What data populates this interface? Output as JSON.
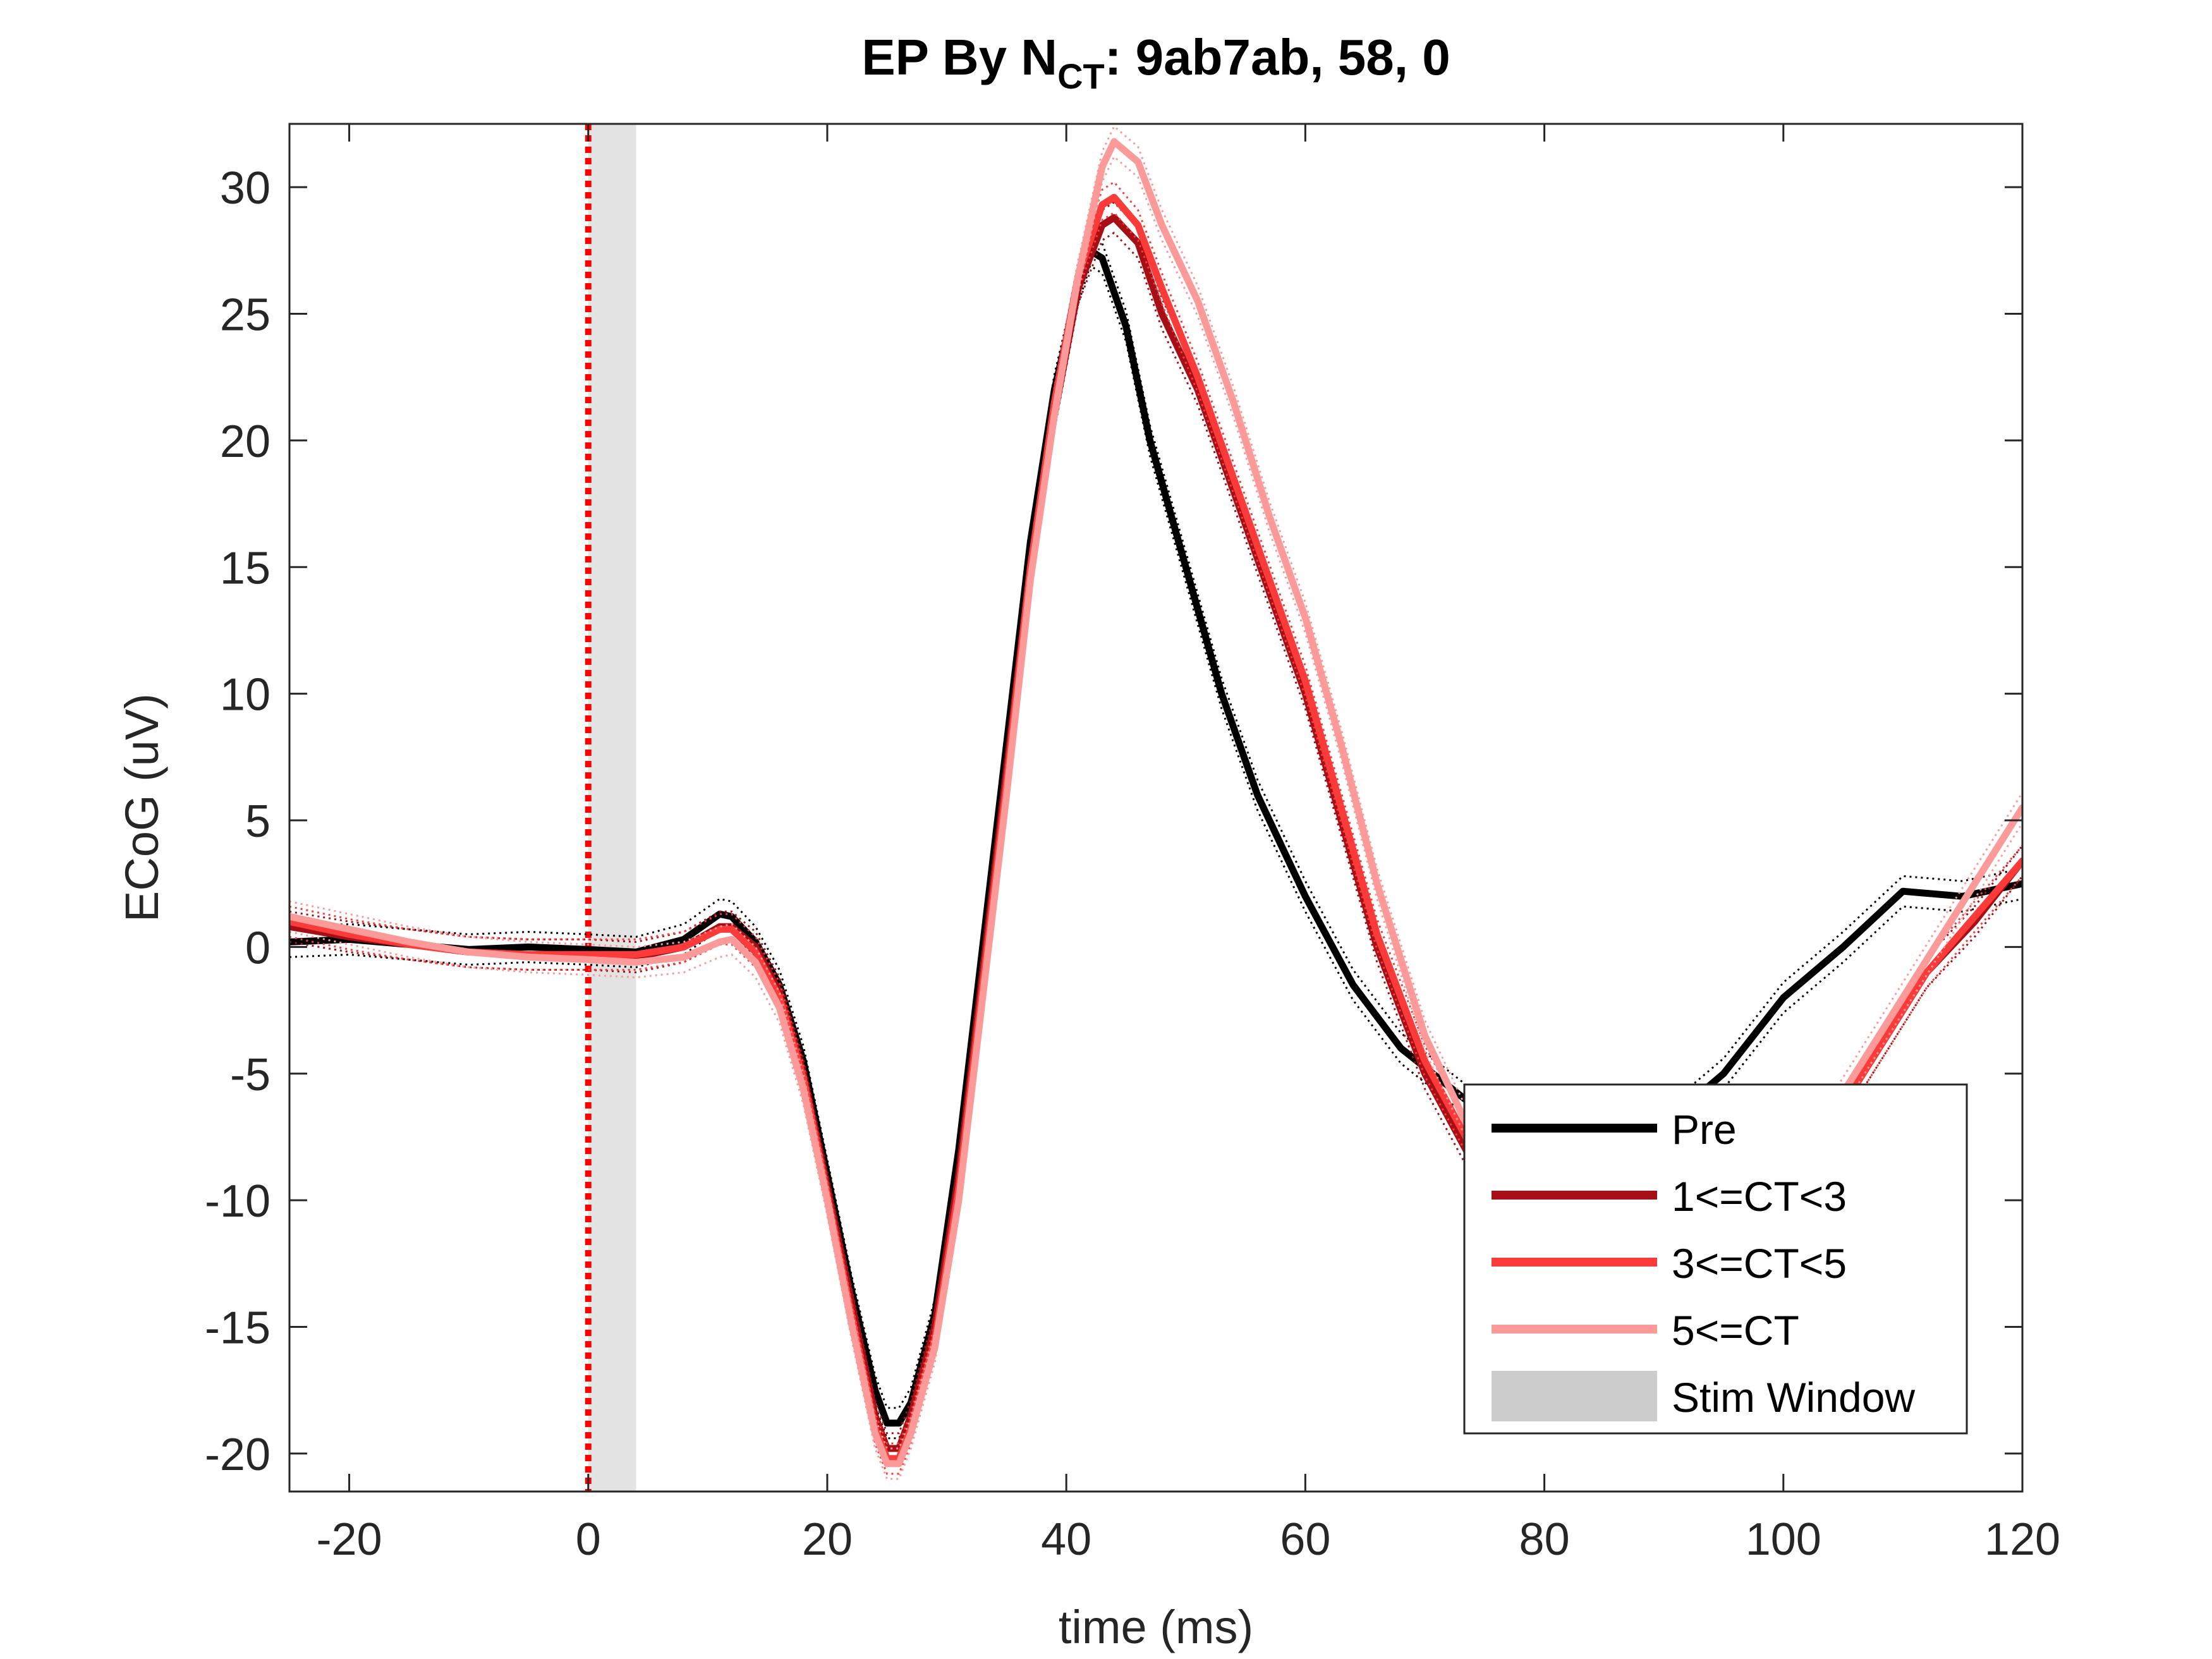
{
  "chart_data": {
    "type": "line",
    "title": {
      "prefix": "EP By N",
      "subscript": "CT",
      "suffix": ": 9ab7ab, 58, 0"
    },
    "xlabel": "time (ms)",
    "ylabel": "ECoG (uV)",
    "xlim": [
      -25,
      120
    ],
    "ylim": [
      -21.5,
      32.5
    ],
    "xticks": [
      -20,
      0,
      20,
      40,
      60,
      80,
      100,
      120
    ],
    "xtick_labels": [
      "-20",
      "0",
      "20",
      "40",
      "60",
      "80",
      "100",
      "120"
    ],
    "yticks": [
      -20,
      -15,
      -10,
      -5,
      0,
      5,
      10,
      15,
      20,
      25,
      30
    ],
    "ytick_labels": [
      "-20",
      "-15",
      "-10",
      "-5",
      "0",
      "5",
      "10",
      "15",
      "20",
      "25",
      "30"
    ],
    "grid": false,
    "legend_position": "bottom-right",
    "stim_window": {
      "label": "Stim Window",
      "x": [
        0,
        4
      ],
      "color": "#cccccc"
    },
    "stim_onset_line": {
      "x": 0,
      "color": "#ff0000",
      "style": "dotted"
    },
    "series": [
      {
        "name": "Pre",
        "color": "#000000",
        "points": [
          [
            -25,
            0.2
          ],
          [
            -20,
            0.3
          ],
          [
            -15,
            0.1
          ],
          [
            -10,
            -0.1
          ],
          [
            -5,
            0
          ],
          [
            0,
            -0.1
          ],
          [
            4,
            -0.2
          ],
          [
            8,
            0.3
          ],
          [
            11,
            1.3
          ],
          [
            12,
            1.2
          ],
          [
            14,
            0.2
          ],
          [
            16,
            -1.5
          ],
          [
            18,
            -4.5
          ],
          [
            20,
            -9.0
          ],
          [
            22,
            -13.5
          ],
          [
            24,
            -17.5
          ],
          [
            25,
            -18.8
          ],
          [
            26,
            -18.8
          ],
          [
            27,
            -18.0
          ],
          [
            29,
            -14.5
          ],
          [
            31,
            -8
          ],
          [
            33,
            0
          ],
          [
            35,
            8
          ],
          [
            37,
            16
          ],
          [
            39,
            22
          ],
          [
            41,
            26
          ],
          [
            42,
            27.5
          ],
          [
            43,
            27.2
          ],
          [
            45,
            24.5
          ],
          [
            47,
            20
          ],
          [
            50,
            15
          ],
          [
            53,
            10
          ],
          [
            56,
            6
          ],
          [
            60,
            2
          ],
          [
            64,
            -1.5
          ],
          [
            68,
            -4
          ],
          [
            72,
            -5.5
          ],
          [
            76,
            -7
          ],
          [
            80,
            -7.5
          ],
          [
            85,
            -8
          ],
          [
            90,
            -7
          ],
          [
            95,
            -5
          ],
          [
            100,
            -2
          ],
          [
            105,
            0
          ],
          [
            110,
            2.2
          ],
          [
            115,
            2
          ],
          [
            120,
            2.5
          ]
        ]
      },
      {
        "name": "1<=CT<3",
        "color": "#a50f15",
        "points": [
          [
            -25,
            0.8
          ],
          [
            -20,
            0.4
          ],
          [
            -15,
            0.1
          ],
          [
            -10,
            -0.2
          ],
          [
            -5,
            -0.3
          ],
          [
            0,
            -0.3
          ],
          [
            4,
            -0.4
          ],
          [
            8,
            0
          ],
          [
            11,
            0.8
          ],
          [
            12,
            0.8
          ],
          [
            14,
            0
          ],
          [
            16,
            -1.8
          ],
          [
            18,
            -5
          ],
          [
            20,
            -9.5
          ],
          [
            22,
            -14
          ],
          [
            24,
            -18.5
          ],
          [
            25,
            -19.8
          ],
          [
            26,
            -19.8
          ],
          [
            27,
            -18.5
          ],
          [
            29,
            -15
          ],
          [
            31,
            -9
          ],
          [
            33,
            -1
          ],
          [
            35,
            7
          ],
          [
            37,
            15
          ],
          [
            39,
            21
          ],
          [
            41,
            26
          ],
          [
            43,
            28.5
          ],
          [
            44,
            28.8
          ],
          [
            46,
            27.8
          ],
          [
            48,
            25
          ],
          [
            51,
            22
          ],
          [
            54,
            18
          ],
          [
            57,
            14
          ],
          [
            60,
            10
          ],
          [
            63,
            5
          ],
          [
            66,
            0
          ],
          [
            70,
            -5
          ],
          [
            74,
            -8.5
          ],
          [
            78,
            -10
          ],
          [
            82,
            -10.5
          ],
          [
            86,
            -10.5
          ],
          [
            90,
            -10
          ],
          [
            95,
            -9.5
          ],
          [
            100,
            -8.5
          ],
          [
            104,
            -7
          ],
          [
            108,
            -4
          ],
          [
            112,
            -1
          ],
          [
            116,
            1
          ],
          [
            120,
            3.4
          ]
        ]
      },
      {
        "name": "3<=CT<5",
        "color": "#fb3a3a",
        "points": [
          [
            -25,
            1.0
          ],
          [
            -20,
            0.5
          ],
          [
            -15,
            0.1
          ],
          [
            -10,
            -0.2
          ],
          [
            -5,
            -0.3
          ],
          [
            0,
            -0.3
          ],
          [
            4,
            -0.3
          ],
          [
            8,
            0
          ],
          [
            11,
            0.7
          ],
          [
            12,
            0.7
          ],
          [
            14,
            -0.2
          ],
          [
            16,
            -2
          ],
          [
            18,
            -5.2
          ],
          [
            20,
            -9.8
          ],
          [
            22,
            -14.5
          ],
          [
            24,
            -19
          ],
          [
            25,
            -20.2
          ],
          [
            26,
            -20.2
          ],
          [
            27,
            -19
          ],
          [
            29,
            -15.5
          ],
          [
            31,
            -9.5
          ],
          [
            33,
            -1.5
          ],
          [
            35,
            6.5
          ],
          [
            37,
            15
          ],
          [
            39,
            21.5
          ],
          [
            41,
            26.5
          ],
          [
            43,
            29.3
          ],
          [
            44,
            29.6
          ],
          [
            46,
            28.5
          ],
          [
            48,
            26
          ],
          [
            51,
            22.5
          ],
          [
            54,
            18.5
          ],
          [
            57,
            14.5
          ],
          [
            60,
            10.5
          ],
          [
            63,
            5.5
          ],
          [
            66,
            0.5
          ],
          [
            70,
            -4.5
          ],
          [
            74,
            -8
          ],
          [
            78,
            -9.8
          ],
          [
            82,
            -10.5
          ],
          [
            86,
            -10.5
          ],
          [
            90,
            -10
          ],
          [
            95,
            -9.5
          ],
          [
            100,
            -8.5
          ],
          [
            104,
            -7
          ],
          [
            108,
            -4
          ],
          [
            112,
            -1
          ],
          [
            116,
            1.2
          ],
          [
            120,
            3.4
          ]
        ]
      },
      {
        "name": "5<=CT",
        "color": "#fc9a9a",
        "points": [
          [
            -25,
            1.2
          ],
          [
            -20,
            0.7
          ],
          [
            -15,
            0.2
          ],
          [
            -10,
            -0.2
          ],
          [
            -5,
            -0.4
          ],
          [
            0,
            -0.5
          ],
          [
            4,
            -0.6
          ],
          [
            8,
            -0.4
          ],
          [
            11,
            0.2
          ],
          [
            12,
            0.3
          ],
          [
            14,
            -0.6
          ],
          [
            16,
            -2.4
          ],
          [
            18,
            -5.6
          ],
          [
            20,
            -10
          ],
          [
            22,
            -14.8
          ],
          [
            24,
            -19.2
          ],
          [
            25,
            -20.4
          ],
          [
            26,
            -20.4
          ],
          [
            27,
            -19.2
          ],
          [
            29,
            -15.8
          ],
          [
            31,
            -10
          ],
          [
            33,
            -2
          ],
          [
            35,
            6
          ],
          [
            37,
            14.5
          ],
          [
            39,
            21
          ],
          [
            41,
            26.5
          ],
          [
            43,
            30.8
          ],
          [
            44,
            31.8
          ],
          [
            46,
            31
          ],
          [
            48,
            28.5
          ],
          [
            51,
            25.5
          ],
          [
            54,
            21.5
          ],
          [
            57,
            17
          ],
          [
            60,
            13
          ],
          [
            63,
            8
          ],
          [
            66,
            2.5
          ],
          [
            70,
            -3.5
          ],
          [
            74,
            -7.5
          ],
          [
            78,
            -9.5
          ],
          [
            82,
            -10.5
          ],
          [
            86,
            -10.5
          ],
          [
            90,
            -10
          ],
          [
            95,
            -9.5
          ],
          [
            100,
            -8.5
          ],
          [
            104,
            -6.5
          ],
          [
            108,
            -3.5
          ],
          [
            112,
            -0.5
          ],
          [
            116,
            2.5
          ],
          [
            120,
            5.5
          ]
        ]
      }
    ]
  }
}
